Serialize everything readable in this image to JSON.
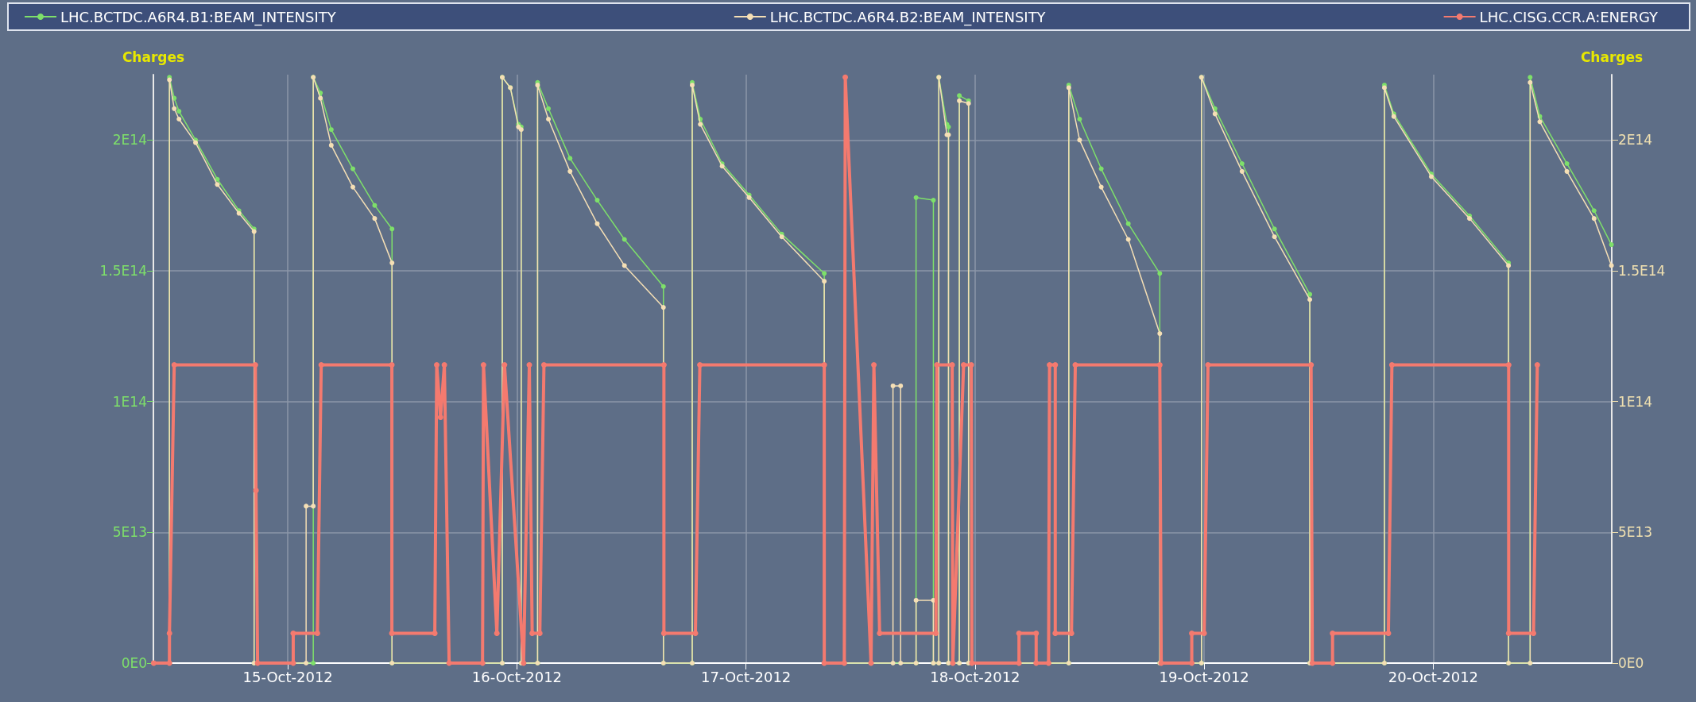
{
  "chart_data": {
    "type": "line",
    "ylabel": "Charges",
    "y2label": "Charges",
    "legend": "top",
    "grid": true,
    "marker": "circle",
    "line_style": "solid",
    "xlim": [
      "2012-10-14T09:55",
      "2012-10-20T18:42"
    ],
    "xticks": [
      {
        "value": "2012-10-15",
        "label": "15-Oct-2012"
      },
      {
        "value": "2012-10-16",
        "label": "16-Oct-2012"
      },
      {
        "value": "2012-10-17",
        "label": "17-Oct-2012"
      },
      {
        "value": "2012-10-18",
        "label": "18-Oct-2012"
      },
      {
        "value": "2012-10-19",
        "label": "19-Oct-2012"
      },
      {
        "value": "2012-10-20",
        "label": "20-Oct-2012"
      }
    ],
    "ylim": [
      0,
      225000000000000.0
    ],
    "yticks": [
      {
        "value": 0,
        "label": "0E0"
      },
      {
        "value": 50000000000000.0,
        "label": "5E13"
      },
      {
        "value": 100000000000000.0,
        "label": "1E14"
      },
      {
        "value": 150000000000000.0,
        "label": "1.5E14"
      },
      {
        "value": 200000000000000.0,
        "label": "2E14"
      }
    ],
    "y2lim": [
      0,
      225000000000000.0
    ],
    "y2ticks": [
      {
        "value": 0,
        "label": "0E0"
      },
      {
        "value": 50000000000000.0,
        "label": "5E13"
      },
      {
        "value": 100000000000000.0,
        "label": "1E14"
      },
      {
        "value": 150000000000000.0,
        "label": "1.5E14"
      },
      {
        "value": 200000000000000.0,
        "label": "2E14"
      }
    ],
    "series": [
      {
        "name": "LHC.BCTDC.A6R4.B1:BEAM_INTENSITY",
        "color": "#7ee06a",
        "x": [
          "2012-10-14T09:57",
          "2012-10-14T11:36",
          "2012-10-14T11:36",
          "2012-10-14T12:06",
          "2012-10-14T12:36",
          "2012-10-14T14:20",
          "2012-10-14T16:37",
          "2012-10-14T18:53",
          "2012-10-14T20:28",
          "2012-10-14T20:28",
          "2012-10-15T02:40",
          "2012-10-15T02:40",
          "2012-10-15T03:25",
          "2012-10-15T04:33",
          "2012-10-15T06:49",
          "2012-10-15T09:06",
          "2012-10-15T10:55",
          "2012-10-15T10:55",
          "2012-10-15T22:28",
          "2012-10-15T22:28",
          "2012-10-15T23:19",
          "2012-10-16T00:10",
          "2012-10-16T00:27",
          "2012-10-16T00:27",
          "2012-10-16T02:10",
          "2012-10-16T02:10",
          "2012-10-16T03:18",
          "2012-10-16T05:34",
          "2012-10-16T08:25",
          "2012-10-16T11:16",
          "2012-10-16T15:21",
          "2012-10-16T15:21",
          "2012-10-16T18:22",
          "2012-10-16T18:22",
          "2012-10-16T19:13",
          "2012-10-16T21:30",
          "2012-10-17T00:20",
          "2012-10-17T03:45",
          "2012-10-17T08:12",
          "2012-10-17T08:12",
          "2012-10-17T17:49",
          "2012-10-17T17:49",
          "2012-10-17T19:38",
          "2012-10-17T19:38",
          "2012-10-17T20:12",
          "2012-10-17T20:12",
          "2012-10-17T21:03",
          "2012-10-17T21:13",
          "2012-10-17T21:13",
          "2012-10-17T22:21",
          "2012-10-17T22:21",
          "2012-10-17T23:19",
          "2012-10-17T23:19",
          "2012-10-18T09:49",
          "2012-10-18T09:49",
          "2012-10-18T10:57",
          "2012-10-18T13:13",
          "2012-10-18T16:03",
          "2012-10-18T19:21",
          "2012-10-18T19:21",
          "2012-10-18T23:43",
          "2012-10-18T23:43",
          "2012-10-19T01:08",
          "2012-10-19T03:58",
          "2012-10-19T07:22",
          "2012-10-19T11:04",
          "2012-10-19T11:04",
          "2012-10-19T18:53",
          "2012-10-19T18:53",
          "2012-10-19T19:52",
          "2012-10-19T23:48",
          "2012-10-20T03:48",
          "2012-10-20T07:53",
          "2012-10-20T07:53",
          "2012-10-20T10:09",
          "2012-10-20T10:09",
          "2012-10-20T11:10",
          "2012-10-20T14:00",
          "2012-10-20T16:51",
          "2012-10-20T18:40"
        ],
        "values": [
          0,
          0,
          224000000000000.0,
          216000000000000.0,
          211000000000000.0,
          200000000000000.0,
          185000000000000.0,
          173000000000000.0,
          166000000000000.0,
          0,
          0,
          224000000000000.0,
          218000000000000.0,
          204000000000000.0,
          189000000000000.0,
          175000000000000.0,
          166000000000000.0,
          0,
          0,
          224000000000000.0,
          220000000000000.0,
          206000000000000.0,
          205000000000000.0,
          0,
          0,
          222000000000000.0,
          212000000000000.0,
          193000000000000.0,
          177000000000000.0,
          162000000000000.0,
          144000000000000.0,
          0,
          0,
          222000000000000.0,
          208000000000000.0,
          191000000000000.0,
          179000000000000.0,
          164000000000000.0,
          149000000000000.0,
          0,
          0,
          178000000000000.0,
          177000000000000.0,
          0,
          0,
          224000000000000.0,
          206000000000000.0,
          205000000000000.0,
          0,
          0,
          217000000000000.0,
          215000000000000.0,
          0,
          0,
          221000000000000.0,
          208000000000000.0,
          189000000000000.0,
          168000000000000.0,
          149000000000000.0,
          0,
          0,
          224000000000000.0,
          212000000000000.0,
          191000000000000.0,
          166000000000000.0,
          141000000000000.0,
          0,
          0,
          221000000000000.0,
          210000000000000.0,
          187000000000000.0,
          171000000000000.0,
          153000000000000.0,
          0,
          0,
          224000000000000.0,
          209000000000000.0,
          191000000000000.0,
          173000000000000.0,
          160000000000000.0
        ]
      },
      {
        "name": "LHC.BCTDC.A6R4.B2:BEAM_INTENSITY",
        "color": "#f5dfb5",
        "x": [
          "2012-10-14T09:57",
          "2012-10-14T11:36",
          "2012-10-14T11:36",
          "2012-10-14T12:06",
          "2012-10-14T12:36",
          "2012-10-14T14:20",
          "2012-10-14T16:37",
          "2012-10-14T18:53",
          "2012-10-14T20:28",
          "2012-10-14T20:28",
          "2012-10-15T01:55",
          "2012-10-15T01:55",
          "2012-10-15T02:40",
          "2012-10-15T02:40",
          "2012-10-15T03:25",
          "2012-10-15T04:33",
          "2012-10-15T06:49",
          "2012-10-15T09:06",
          "2012-10-15T10:55",
          "2012-10-15T10:55",
          "2012-10-15T22:28",
          "2012-10-15T22:28",
          "2012-10-15T23:19",
          "2012-10-16T00:10",
          "2012-10-16T00:27",
          "2012-10-16T00:27",
          "2012-10-16T02:10",
          "2012-10-16T02:10",
          "2012-10-16T03:18",
          "2012-10-16T05:34",
          "2012-10-16T08:25",
          "2012-10-16T11:16",
          "2012-10-16T15:21",
          "2012-10-16T15:21",
          "2012-10-16T18:22",
          "2012-10-16T18:22",
          "2012-10-16T19:13",
          "2012-10-16T21:30",
          "2012-10-17T00:20",
          "2012-10-17T03:45",
          "2012-10-17T08:12",
          "2012-10-17T08:12",
          "2012-10-17T15:24",
          "2012-10-17T15:24",
          "2012-10-17T16:12",
          "2012-10-17T16:12",
          "2012-10-17T17:49",
          "2012-10-17T17:49",
          "2012-10-17T19:38",
          "2012-10-17T19:38",
          "2012-10-17T20:12",
          "2012-10-17T20:12",
          "2012-10-17T21:03",
          "2012-10-17T21:13",
          "2012-10-17T21:13",
          "2012-10-17T22:21",
          "2012-10-17T22:21",
          "2012-10-17T23:19",
          "2012-10-17T23:19",
          "2012-10-18T09:49",
          "2012-10-18T09:49",
          "2012-10-18T10:57",
          "2012-10-18T13:13",
          "2012-10-18T16:03",
          "2012-10-18T19:21",
          "2012-10-18T19:21",
          "2012-10-18T23:43",
          "2012-10-18T23:43",
          "2012-10-19T01:08",
          "2012-10-19T03:58",
          "2012-10-19T07:22",
          "2012-10-19T11:04",
          "2012-10-19T11:04",
          "2012-10-19T18:53",
          "2012-10-19T18:53",
          "2012-10-19T19:52",
          "2012-10-19T23:48",
          "2012-10-20T03:48",
          "2012-10-20T07:53",
          "2012-10-20T07:53",
          "2012-10-20T10:09",
          "2012-10-20T10:09",
          "2012-10-20T11:10",
          "2012-10-20T14:00",
          "2012-10-20T16:51",
          "2012-10-20T18:40"
        ],
        "values": [
          0,
          0,
          223000000000000.0,
          212000000000000.0,
          208000000000000.0,
          199000000000000.0,
          183000000000000.0,
          172000000000000.0,
          165000000000000.0,
          0,
          0,
          60000000000000.0,
          60000000000000.0,
          224000000000000.0,
          216000000000000.0,
          198000000000000.0,
          182000000000000.0,
          170000000000000.0,
          153000000000000.0,
          0,
          0,
          224000000000000.0,
          220000000000000.0,
          205000000000000.0,
          204000000000000.0,
          0,
          0,
          221000000000000.0,
          208000000000000.0,
          188000000000000.0,
          168000000000000.0,
          152000000000000.0,
          136000000000000.0,
          0,
          0,
          221000000000000.0,
          206000000000000.0,
          190000000000000.0,
          178000000000000.0,
          163000000000000.0,
          146000000000000.0,
          0,
          0,
          106000000000000.0,
          106000000000000.0,
          0,
          0,
          24000000000000.0,
          24000000000000.0,
          0,
          0,
          224000000000000.0,
          202000000000000.0,
          202000000000000.0,
          0,
          0,
          215000000000000.0,
          214000000000000.0,
          0,
          0,
          220000000000000.0,
          200000000000000.0,
          182000000000000.0,
          162000000000000.0,
          126000000000000.0,
          0,
          0,
          224000000000000.0,
          210000000000000.0,
          188000000000000.0,
          163000000000000.0,
          139000000000000.0,
          0,
          0,
          220000000000000.0,
          209000000000000.0,
          186000000000000.0,
          170000000000000.0,
          152000000000000.0,
          0,
          0,
          222000000000000.0,
          207000000000000.0,
          188000000000000.0,
          170000000000000.0,
          152000000000000.0
        ]
      },
      {
        "name": "LHC.CISG.CCR.A:ENERGY",
        "color": "#f47a6f",
        "x": [
          "2012-10-14T09:57",
          "2012-10-14T11:36",
          "2012-10-14T11:36",
          "2012-10-14T12:06",
          "2012-10-14T20:36",
          "2012-10-14T20:40",
          "2012-10-14T20:50",
          "2012-10-15T00:34",
          "2012-10-15T00:34",
          "2012-10-15T03:06",
          "2012-10-15T03:30",
          "2012-10-15T10:54",
          "2012-10-15T10:54",
          "2012-10-15T15:24",
          "2012-10-15T15:36",
          "2012-10-15T16:00",
          "2012-10-15T16:24",
          "2012-10-15T16:54",
          "2012-10-15T20:24",
          "2012-10-15T20:30",
          "2012-10-15T21:54",
          "2012-10-15T22:42",
          "2012-10-16T00:42",
          "2012-10-16T01:18",
          "2012-10-16T01:36",
          "2012-10-16T02:24",
          "2012-10-16T02:50",
          "2012-10-16T15:24",
          "2012-10-16T15:24",
          "2012-10-16T18:42",
          "2012-10-16T19:10",
          "2012-10-17T08:12",
          "2012-10-17T08:12",
          "2012-10-17T10:18",
          "2012-10-17T10:24",
          "2012-10-17T13:06",
          "2012-10-17T13:24",
          "2012-10-17T14:00",
          "2012-10-17T19:54",
          "2012-10-17T20:00",
          "2012-10-17T21:36",
          "2012-10-17T21:40",
          "2012-10-17T22:48",
          "2012-10-17T23:36",
          "2012-10-17T23:40",
          "2012-10-18T04:36",
          "2012-10-18T04:36",
          "2012-10-18T06:24",
          "2012-10-18T06:24",
          "2012-10-18T07:42",
          "2012-10-18T07:48",
          "2012-10-18T08:24",
          "2012-10-18T08:24",
          "2012-10-18T10:06",
          "2012-10-18T10:30",
          "2012-10-18T19:21",
          "2012-10-18T19:30",
          "2012-10-18T22:42",
          "2012-10-18T22:42",
          "2012-10-19T00:00",
          "2012-10-19T00:24",
          "2012-10-19T11:12",
          "2012-10-19T11:20",
          "2012-10-19T13:27",
          "2012-10-19T13:27",
          "2012-10-19T19:18",
          "2012-10-19T19:40",
          "2012-10-20T07:54",
          "2012-10-20T07:54",
          "2012-10-20T10:30",
          "2012-10-20T10:54"
        ],
        "values": [
          0,
          0,
          11400000000000.0,
          114000000000000.0,
          114000000000000.0,
          66000000000000.0,
          0,
          0,
          11400000000000.0,
          11400000000000.0,
          114000000000000.0,
          114000000000000.0,
          11400000000000.0,
          11400000000000.0,
          114000000000000.0,
          94000000000000.0,
          114000000000000.0,
          0,
          0,
          114000000000000.0,
          11400000000000.0,
          114000000000000.0,
          0,
          114000000000000.0,
          11400000000000.0,
          11400000000000.0,
          114000000000000.0,
          114000000000000.0,
          11400000000000.0,
          11400000000000.0,
          114000000000000.0,
          114000000000000.0,
          0,
          0,
          224000000000000.0,
          0,
          114000000000000.0,
          11400000000000.0,
          11400000000000.0,
          114000000000000.0,
          114000000000000.0,
          0,
          114000000000000.0,
          114000000000000.0,
          0,
          0,
          11400000000000.0,
          11400000000000.0,
          0,
          0,
          114000000000000.0,
          114000000000000.0,
          11400000000000.0,
          11400000000000.0,
          114000000000000.0,
          114000000000000.0,
          0,
          0,
          11400000000000.0,
          11400000000000.0,
          114000000000000.0,
          114000000000000.0,
          0,
          0,
          11400000000000.0,
          11400000000000.0,
          114000000000000.0,
          114000000000000.0,
          11400000000000.0,
          11400000000000.0,
          114000000000000.0
        ]
      }
    ]
  }
}
